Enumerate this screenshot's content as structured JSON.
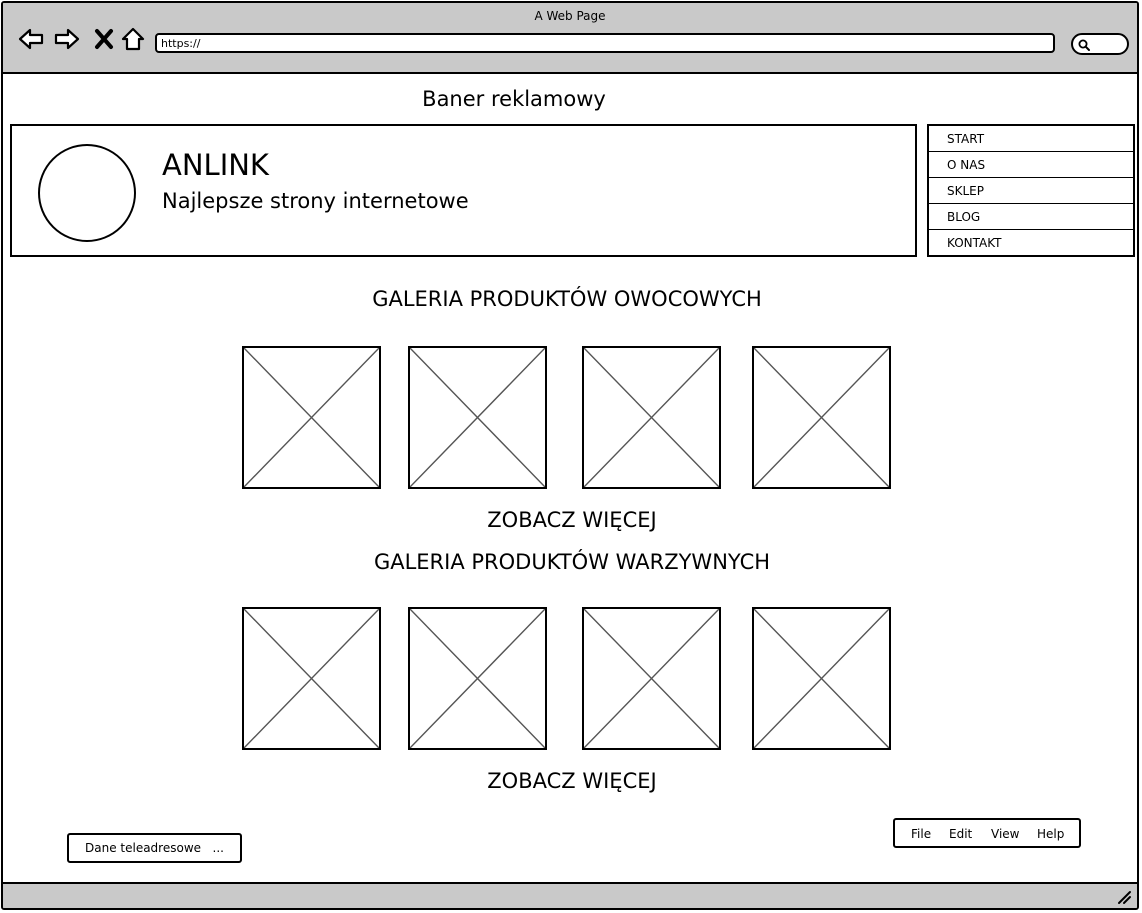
{
  "window": {
    "title": "A Web Page"
  },
  "browser": {
    "url": "https://"
  },
  "banner": {
    "label": "Baner reklamowy"
  },
  "header": {
    "brand": "ANLINK",
    "slogan": "Najlepsze strony internetowe"
  },
  "nav": {
    "items": [
      {
        "label": "START"
      },
      {
        "label": "O NAS"
      },
      {
        "label": "SKLEP"
      },
      {
        "label": "BLOG"
      },
      {
        "label": "KONTAKT"
      }
    ]
  },
  "galleries": [
    {
      "title": "GALERIA PRODUKTÓW OWOCOWYCH",
      "more_label": "ZOBACZ WIĘCEJ"
    },
    {
      "title": "GALERIA PRODUKTÓW WARZYWNYCH",
      "more_label": "ZOBACZ WIĘCEJ"
    }
  ],
  "footer": {
    "contact_label": "Dane teleadresowe",
    "contact_ellipsis": "...",
    "menubar": {
      "file": "File",
      "edit": "Edit",
      "view": "View",
      "help": "Help"
    }
  },
  "colors": {
    "chrome": "#c9c9c9",
    "stroke": "#000000",
    "placeholder_line": "#555555"
  }
}
